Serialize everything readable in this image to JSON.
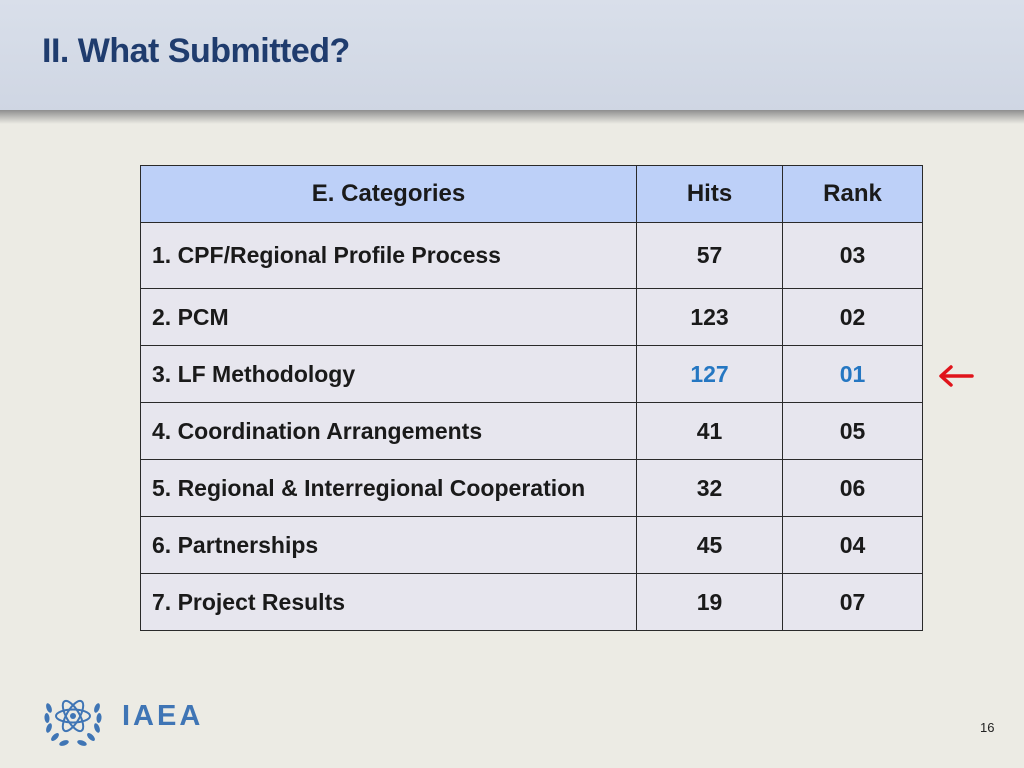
{
  "slide": {
    "title": "II. What Submitted?",
    "page_number": "16",
    "logo_text": "IAEA"
  },
  "table": {
    "headers": [
      "E. Categories",
      "Hits",
      "Rank"
    ],
    "rows": [
      {
        "category": "1.  CPF/Regional Profile Process",
        "hits": "57",
        "rank": "03"
      },
      {
        "category": "2.  PCM",
        "hits": "123",
        "rank": "02"
      },
      {
        "category": "3.  LF Methodology",
        "hits": "127",
        "rank": "01",
        "highlight": true
      },
      {
        "category": "4.  Coordination Arrangements",
        "hits": "41",
        "rank": "05"
      },
      {
        "category": "5.  Regional & Interregional Cooperation",
        "hits": "32",
        "rank": "06"
      },
      {
        "category": "6.  Partnerships",
        "hits": "45",
        "rank": "04"
      },
      {
        "category": "7.  Project Results",
        "hits": "19",
        "rank": "07"
      }
    ]
  },
  "colors": {
    "title": "#1f3c6e",
    "header_fill": "#bdd0f8",
    "cell_fill": "#e7e6ee",
    "highlight": "#2577c2",
    "arrow": "#e0141b",
    "logo": "#3f75b5"
  },
  "icons": {
    "arrow": "left-arrow-icon",
    "logo": "iaea-atom-laurel-logo"
  }
}
